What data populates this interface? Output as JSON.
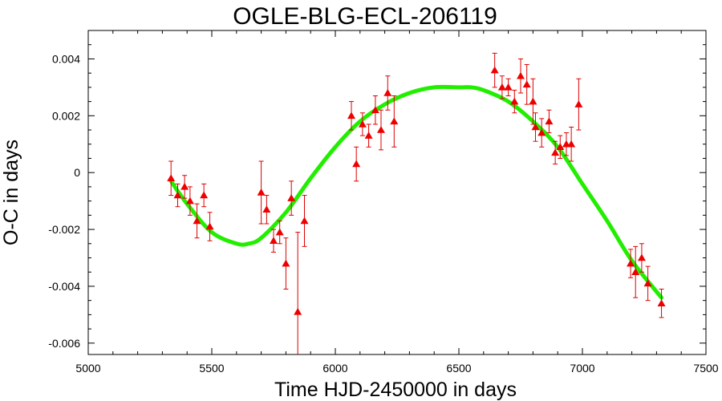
{
  "chart_data": {
    "type": "scatter",
    "title": "OGLE-BLG-ECL-206119",
    "xlabel": "Time HJD-2450000 in days",
    "ylabel": "O-C in days",
    "xlim": [
      5000,
      7500
    ],
    "ylim": [
      -0.0064,
      0.005
    ],
    "xticks": [
      5000,
      5500,
      6000,
      6500,
      7000,
      7500
    ],
    "xtick_labels": [
      "5000",
      "5500",
      "6000",
      "6500",
      "7000",
      "7500"
    ],
    "yticks": [
      -0.006,
      -0.004,
      -0.002,
      0,
      0.002,
      0.004
    ],
    "ytick_labels": [
      "-0.006",
      "-0.004",
      "-0.002",
      "0",
      "0.002",
      "0.004"
    ],
    "grid": false,
    "colors": {
      "points": "#ee0000",
      "errorbars": "#dd0000",
      "fit": "#22ee00"
    },
    "observations": {
      "marker": "triangle",
      "x": [
        5335,
        5362,
        5390,
        5412,
        5440,
        5468,
        5492,
        5700,
        5722,
        5750,
        5775,
        5800,
        5822,
        5848,
        5875,
        6065,
        6085,
        6110,
        6135,
        6162,
        6185,
        6212,
        6238,
        6645,
        6675,
        6700,
        6725,
        6750,
        6775,
        6800,
        6810,
        6835,
        6865,
        6890,
        6910,
        6935,
        6955,
        6985,
        7195,
        7215,
        7240,
        7265,
        7320
      ],
      "y": [
        -0.0002,
        -0.0008,
        -0.0005,
        -0.001,
        -0.0017,
        -0.0008,
        -0.0019,
        -0.0007,
        -0.0013,
        -0.0024,
        -0.0021,
        -0.0032,
        -0.0009,
        -0.0049,
        -0.0017,
        0.002,
        0.0003,
        0.0017,
        0.0013,
        0.0022,
        0.0015,
        0.0028,
        0.0018,
        0.0036,
        0.003,
        0.003,
        0.0025,
        0.0034,
        0.0031,
        0.0025,
        0.0016,
        0.0014,
        0.0018,
        0.0007,
        0.0009,
        0.001,
        0.001,
        0.0024,
        -0.0032,
        -0.0035,
        -0.003,
        -0.0039,
        -0.0046
      ],
      "yerr": [
        0.0006,
        0.0004,
        0.0004,
        0.0005,
        0.0006,
        0.0004,
        0.0005,
        0.0011,
        0.0005,
        0.0004,
        0.0004,
        0.0009,
        0.0006,
        0.0028,
        0.0009,
        0.0005,
        0.0006,
        0.0004,
        0.0004,
        0.0005,
        0.0007,
        0.0006,
        0.0009,
        0.0006,
        0.0004,
        0.0003,
        0.0004,
        0.0006,
        0.0007,
        0.0008,
        0.0005,
        0.0005,
        0.0004,
        0.0004,
        0.0004,
        0.0004,
        0.0006,
        0.0009,
        0.0005,
        0.0009,
        0.0005,
        0.0006,
        0.0005
      ]
    },
    "fit": {
      "type": "line",
      "x": [
        5335,
        5400,
        5500,
        5600,
        5650,
        5700,
        5800,
        5900,
        6000,
        6100,
        6200,
        6300,
        6400,
        6500,
        6550,
        6600,
        6700,
        6800,
        6900,
        7000,
        7100,
        7200,
        7320
      ],
      "y": [
        -0.0003,
        -0.0011,
        -0.0021,
        -0.0025,
        -0.0025,
        -0.0023,
        -0.0014,
        -0.0002,
        0.0009,
        0.0018,
        0.0024,
        0.0028,
        0.003,
        0.003,
        0.003,
        0.0029,
        0.0025,
        0.0018,
        0.0009,
        -0.0004,
        -0.0017,
        -0.0031,
        -0.0044
      ]
    }
  }
}
